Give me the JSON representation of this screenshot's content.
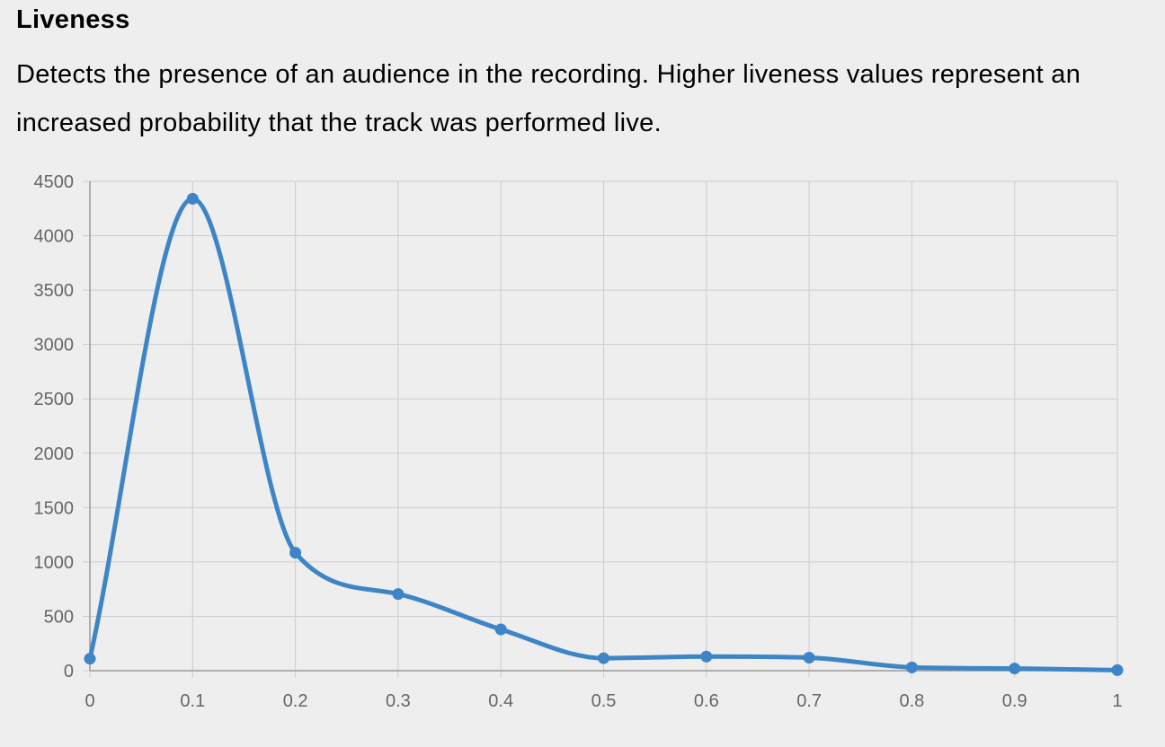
{
  "header": {
    "title": "Liveness",
    "description": "Detects the presence of an audience in the recording. Higher liveness values represent an increased probability that the track was performed live."
  },
  "colors": {
    "line": "#3d85c6",
    "grid": "#cccccc",
    "axis": "#999999",
    "tick_text": "#666666",
    "background": "#eeeeee"
  },
  "chart_data": {
    "type": "line",
    "title": "",
    "xlabel": "",
    "ylabel": "",
    "x": [
      0,
      0.1,
      0.2,
      0.3,
      0.4,
      0.5,
      0.6,
      0.7,
      0.8,
      0.9,
      1
    ],
    "x_tick_labels": [
      "0",
      "0.1",
      "0.2",
      "0.3",
      "0.4",
      "0.5",
      "0.6",
      "0.7",
      "0.8",
      "0.9",
      "1"
    ],
    "y_ticks": [
      0,
      500,
      1000,
      1500,
      2000,
      2500,
      3000,
      3500,
      4000,
      4500
    ],
    "ylim": [
      0,
      4500
    ],
    "xlim": [
      0,
      1
    ],
    "grid": true,
    "smoothed": true,
    "series": [
      {
        "values": [
          110,
          4340,
          1085,
          705,
          380,
          115,
          130,
          120,
          30,
          20,
          5
        ]
      }
    ]
  }
}
